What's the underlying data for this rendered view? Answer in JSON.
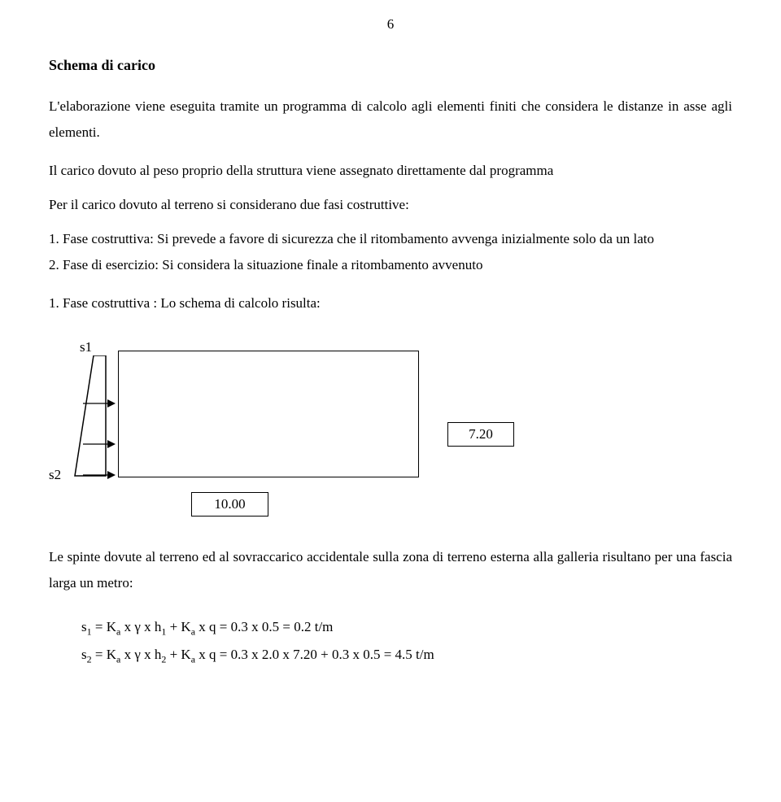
{
  "page_number": "6",
  "heading": "Schema di carico",
  "para1": "L'elaborazione viene eseguita tramite un programma di calcolo agli elementi finiti che considera le distanze in asse agli elementi.",
  "para2": "Il carico dovuto al peso proprio della struttura viene assegnato direttamente dal programma",
  "para3": "Per il carico dovuto al terreno si considerano due fasi costruttive:",
  "item1": "1. Fase costruttiva: Si prevede a favore di sicurezza che il ritombamento avvenga inizialmente solo da un lato",
  "item2": "2. Fase di esercizio: Si considera la situazione finale a ritombamento avvenuto",
  "result_line": "1. Fase costruttiva : Lo schema di calcolo risulta:",
  "diagram": {
    "s1_label": "s1",
    "s2_label": "s2",
    "dim_right": "7.20",
    "dim_bottom": "10.00",
    "stroke": "#000000"
  },
  "para4": "Le spinte dovute al terreno ed al sovraccarico accidentale sulla zona di terreno esterna alla galleria risultano per una fascia larga un metro:",
  "formula1_html": "s<span class=\"sub\">1</span> = K<span class=\"sub\">a</span> x &gamma;  x h<span class=\"sub\">1</span> + K<span class=\"sub\">a</span> x q = 0.3 x 0.5 = 0.2 t/m",
  "formula2_html": "s<span class=\"sub\">2</span> = K<span class=\"sub\">a</span> x &gamma;  x h<span class=\"sub\">2</span> + K<span class=\"sub\">a</span> x q = 0.3  x 2.0 x 7.20 + 0.3 x 0.5 = 4.5 t/m"
}
